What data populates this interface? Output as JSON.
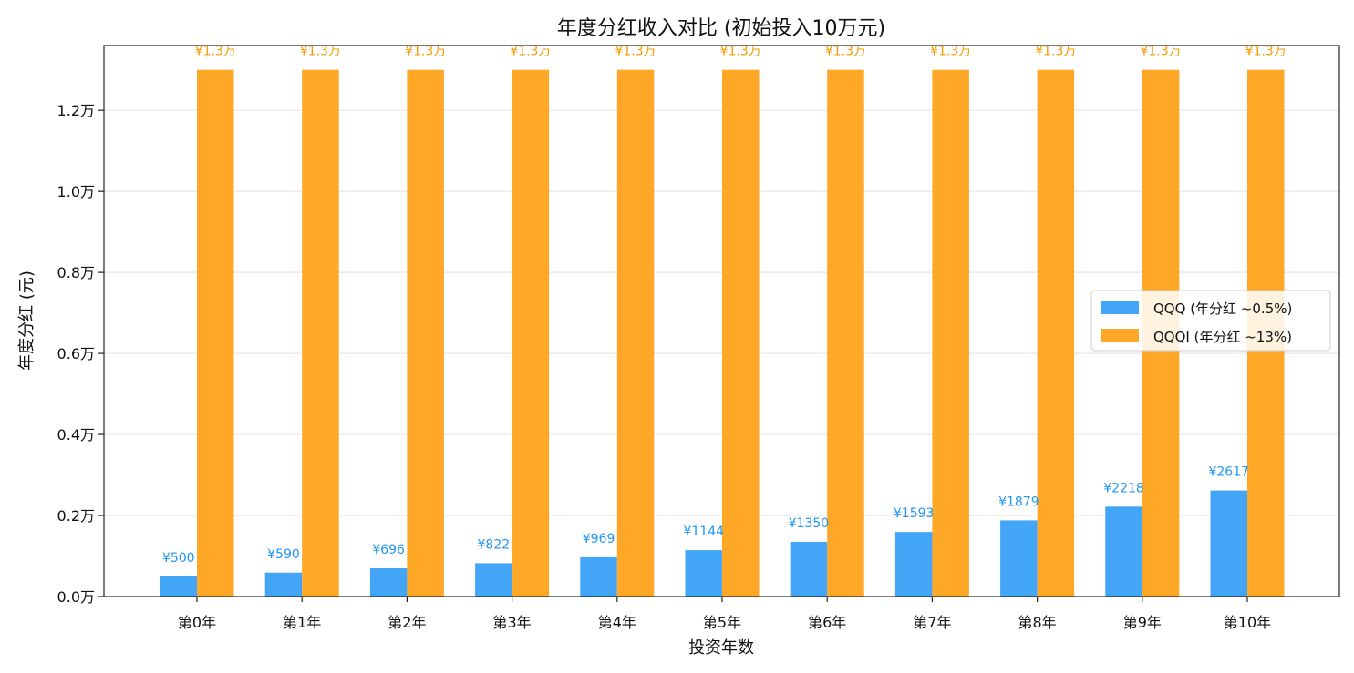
{
  "chart_data": {
    "type": "bar",
    "title": "年度分红收入对比 (初始投入10万元)",
    "xlabel": "投资年数",
    "ylabel": "年度分红 (元)",
    "categories": [
      "第0年",
      "第1年",
      "第2年",
      "第3年",
      "第4年",
      "第5年",
      "第6年",
      "第7年",
      "第8年",
      "第9年",
      "第10年"
    ],
    "ylim": [
      0,
      13600
    ],
    "yticks": [
      0,
      2000,
      4000,
      6000,
      8000,
      10000,
      12000
    ],
    "ytick_labels": [
      "0.0万",
      "0.2万",
      "0.4万",
      "0.6万",
      "0.8万",
      "1.0万",
      "1.2万"
    ],
    "grid": "y",
    "legend_position": "center-right",
    "series": [
      {
        "name": "QQQ (年分红 ~0.5%)",
        "color": "#42a5f5",
        "values": [
          500,
          590,
          696,
          822,
          969,
          1144,
          1350,
          1593,
          1879,
          2218,
          2617
        ],
        "labels": [
          "¥500",
          "¥590",
          "¥696",
          "¥822",
          "¥969",
          "¥1144",
          "¥1350",
          "¥1593",
          "¥1879",
          "¥2218",
          "¥2617"
        ]
      },
      {
        "name": "QQQI (年分红 ~13%)",
        "color": "#ffa726",
        "values": [
          13000,
          13000,
          13000,
          13000,
          13000,
          13000,
          13000,
          13000,
          13000,
          13000,
          13000
        ],
        "labels": [
          "¥1.3万",
          "¥1.3万",
          "¥1.3万",
          "¥1.3万",
          "¥1.3万",
          "¥1.3万",
          "¥1.3万",
          "¥1.3万",
          "¥1.3万",
          "¥1.3万",
          "¥1.3万"
        ]
      }
    ]
  }
}
